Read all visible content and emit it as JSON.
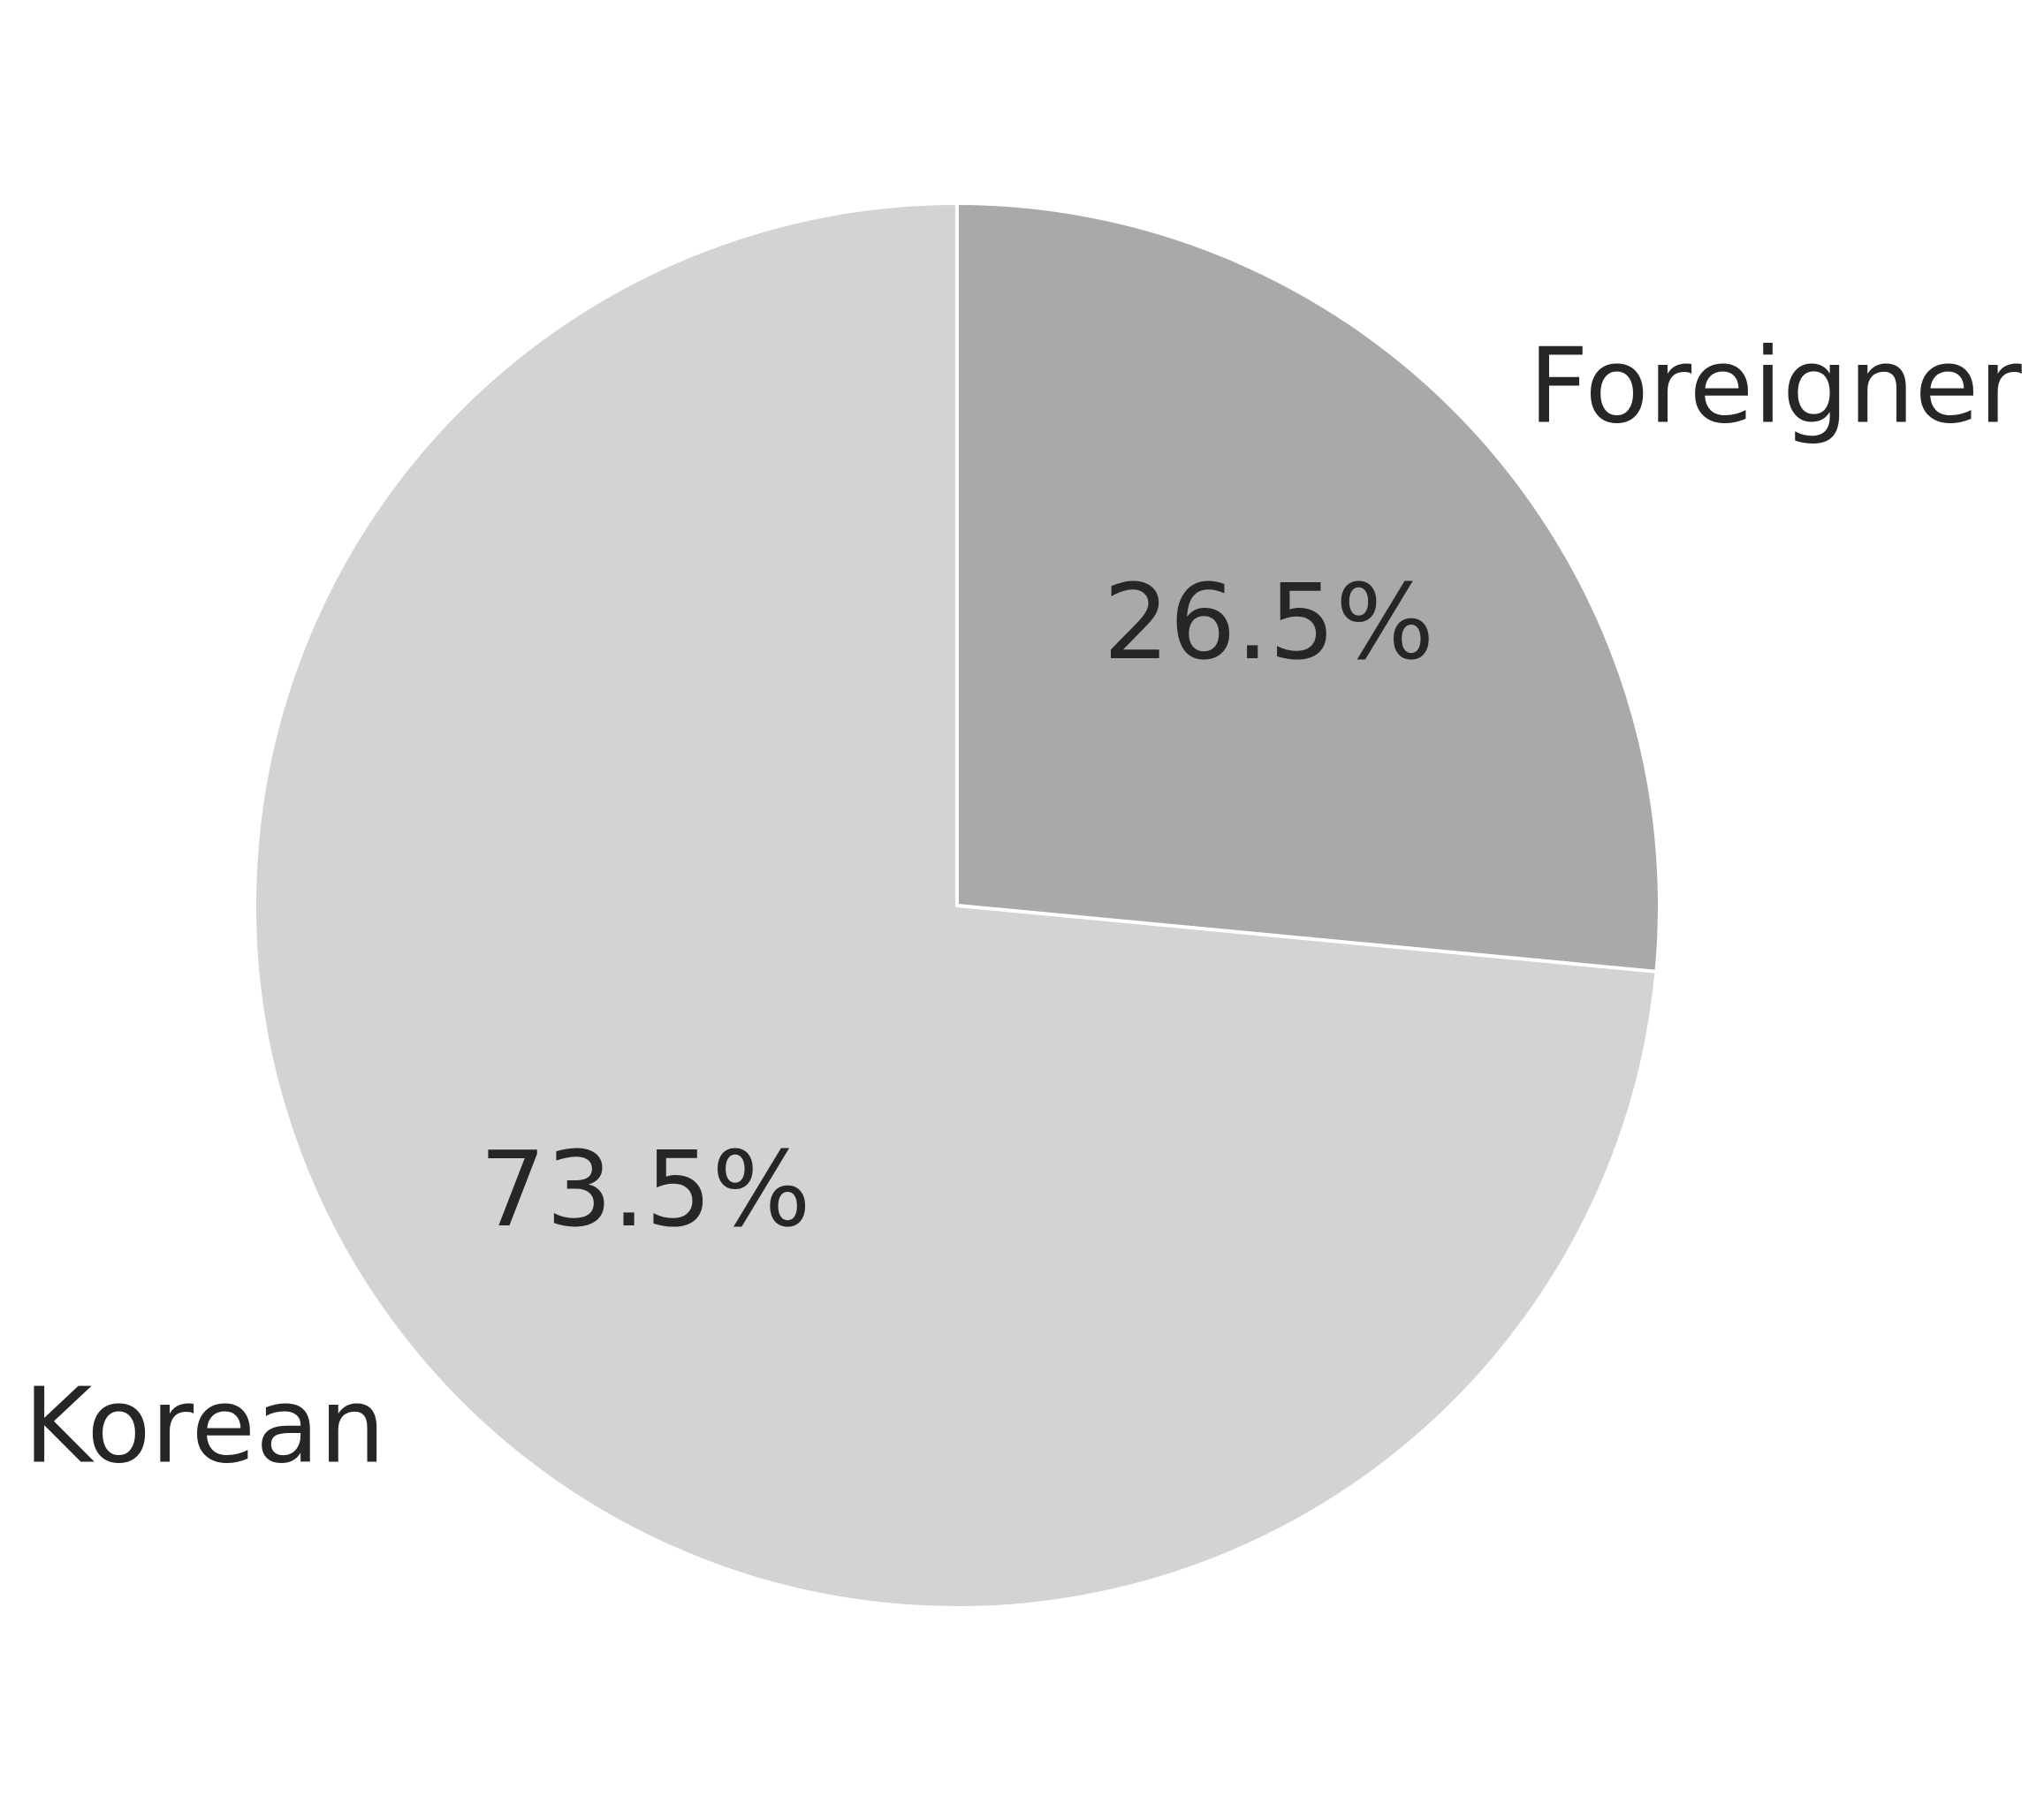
{
  "chart_data": {
    "type": "pie",
    "title": "",
    "start_angle_deg": 90,
    "direction": "clockwise",
    "slices": [
      {
        "label": "Foreigner",
        "value": 26.5,
        "pct_label": "26.5%",
        "color": "#a9a9a9"
      },
      {
        "label": "Korean",
        "value": 73.5,
        "pct_label": "73.5%",
        "color": "#d3d3d3"
      }
    ],
    "legend": "none",
    "text_color": "#262626"
  }
}
